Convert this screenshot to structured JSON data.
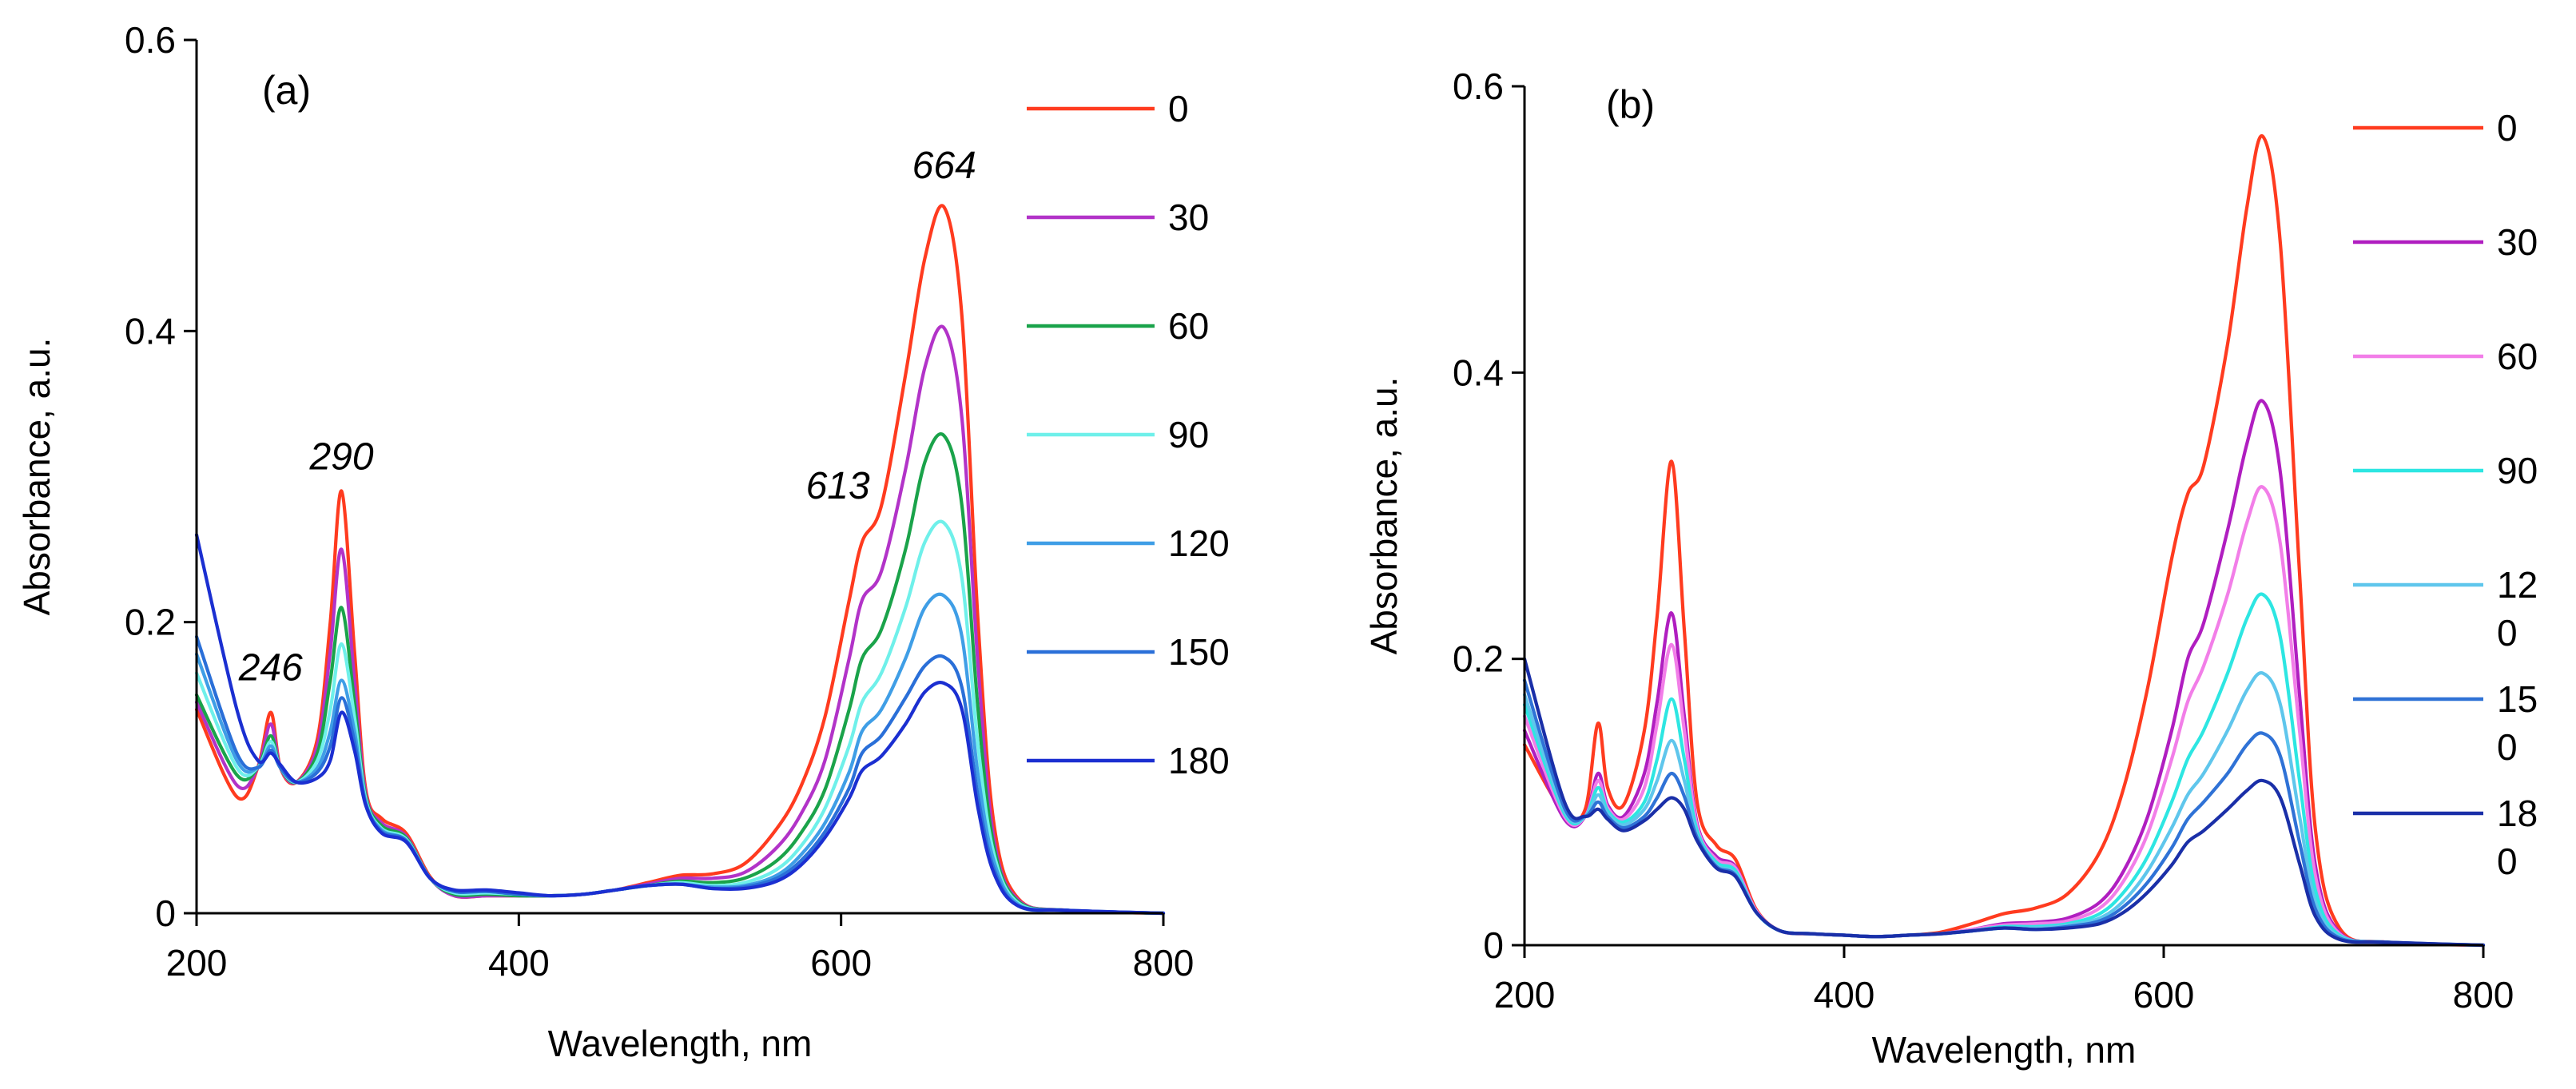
{
  "chart_data": [
    {
      "type": "line",
      "panel_label": "(a)",
      "title": "",
      "xlabel": "Wavelength, nm",
      "ylabel": "Absorbance, a.u.",
      "xlim": [
        200,
        800
      ],
      "ylim": [
        0,
        0.6
      ],
      "x_ticks": [
        200,
        400,
        600,
        800
      ],
      "x_tick_labels": [
        "200",
        "400",
        "600",
        "800"
      ],
      "y_ticks": [
        0,
        0.2,
        0.4,
        0.6
      ],
      "y_tick_labels": [
        "0",
        "0.2",
        "0.4",
        "0.6"
      ],
      "grid": false,
      "legend_position": "right",
      "annotations": [
        {
          "text": "246",
          "x": 246,
          "y": 0.16
        },
        {
          "text": "290",
          "x": 290,
          "y": 0.305
        },
        {
          "text": "613",
          "x": 598,
          "y": 0.285
        },
        {
          "text": "664",
          "x": 664,
          "y": 0.505
        }
      ],
      "x": [
        200,
        225,
        238,
        246,
        252,
        262,
        275,
        283,
        290,
        298,
        305,
        315,
        330,
        345,
        360,
        380,
        400,
        420,
        440,
        460,
        480,
        500,
        520,
        540,
        560,
        575,
        590,
        605,
        613,
        625,
        640,
        652,
        664,
        675,
        685,
        695,
        710,
        740,
        800
      ],
      "series": [
        {
          "name": "0",
          "color": "#ff3b1f",
          "values": [
            0.14,
            0.08,
            0.1,
            0.138,
            0.1,
            0.09,
            0.12,
            0.2,
            0.29,
            0.18,
            0.085,
            0.065,
            0.055,
            0.025,
            0.012,
            0.012,
            0.012,
            0.012,
            0.013,
            0.016,
            0.021,
            0.026,
            0.027,
            0.034,
            0.058,
            0.087,
            0.135,
            0.215,
            0.255,
            0.28,
            0.37,
            0.45,
            0.485,
            0.41,
            0.2,
            0.06,
            0.01,
            0.002,
            0.0
          ]
        },
        {
          "name": "30",
          "color": "#b233c8",
          "values": [
            0.145,
            0.088,
            0.1,
            0.13,
            0.1,
            0.09,
            0.115,
            0.18,
            0.25,
            0.16,
            0.082,
            0.062,
            0.053,
            0.024,
            0.012,
            0.012,
            0.012,
            0.012,
            0.013,
            0.016,
            0.02,
            0.024,
            0.024,
            0.028,
            0.045,
            0.068,
            0.105,
            0.175,
            0.215,
            0.235,
            0.305,
            0.375,
            0.402,
            0.34,
            0.17,
            0.05,
            0.009,
            0.002,
            0.0
          ]
        },
        {
          "name": "60",
          "color": "#1aa34a",
          "values": [
            0.15,
            0.095,
            0.1,
            0.122,
            0.1,
            0.09,
            0.11,
            0.16,
            0.21,
            0.145,
            0.08,
            0.06,
            0.052,
            0.024,
            0.013,
            0.013,
            0.012,
            0.012,
            0.013,
            0.016,
            0.019,
            0.022,
            0.021,
            0.024,
            0.036,
            0.055,
            0.085,
            0.14,
            0.175,
            0.195,
            0.25,
            0.31,
            0.328,
            0.28,
            0.14,
            0.045,
            0.008,
            0.002,
            0.0
          ]
        },
        {
          "name": "90",
          "color": "#6ff0ea",
          "values": [
            0.165,
            0.1,
            0.1,
            0.118,
            0.1,
            0.09,
            0.105,
            0.14,
            0.185,
            0.135,
            0.078,
            0.058,
            0.051,
            0.024,
            0.014,
            0.014,
            0.013,
            0.012,
            0.013,
            0.016,
            0.019,
            0.021,
            0.019,
            0.021,
            0.03,
            0.046,
            0.072,
            0.115,
            0.145,
            0.165,
            0.21,
            0.255,
            0.268,
            0.23,
            0.115,
            0.04,
            0.007,
            0.002,
            0.0
          ]
        },
        {
          "name": "120",
          "color": "#3f9ee6",
          "values": [
            0.178,
            0.105,
            0.1,
            0.115,
            0.1,
            0.09,
            0.1,
            0.125,
            0.16,
            0.125,
            0.076,
            0.057,
            0.05,
            0.024,
            0.015,
            0.015,
            0.013,
            0.012,
            0.013,
            0.016,
            0.019,
            0.02,
            0.018,
            0.019,
            0.026,
            0.04,
            0.062,
            0.097,
            0.125,
            0.14,
            0.175,
            0.21,
            0.218,
            0.19,
            0.095,
            0.035,
            0.006,
            0.002,
            0.0
          ]
        },
        {
          "name": "150",
          "color": "#2a6fd8",
          "values": [
            0.19,
            0.11,
            0.1,
            0.112,
            0.1,
            0.09,
            0.097,
            0.115,
            0.148,
            0.118,
            0.075,
            0.056,
            0.05,
            0.024,
            0.015,
            0.015,
            0.013,
            0.012,
            0.013,
            0.016,
            0.019,
            0.02,
            0.017,
            0.018,
            0.024,
            0.036,
            0.056,
            0.086,
            0.11,
            0.122,
            0.148,
            0.17,
            0.176,
            0.155,
            0.08,
            0.03,
            0.005,
            0.002,
            0.0
          ]
        },
        {
          "name": "180",
          "color": "#1b2fd1",
          "values": [
            0.26,
            0.14,
            0.105,
            0.11,
            0.102,
            0.09,
            0.093,
            0.105,
            0.138,
            0.112,
            0.074,
            0.055,
            0.049,
            0.024,
            0.016,
            0.016,
            0.014,
            0.012,
            0.013,
            0.016,
            0.019,
            0.02,
            0.017,
            0.017,
            0.022,
            0.033,
            0.052,
            0.079,
            0.098,
            0.108,
            0.13,
            0.152,
            0.158,
            0.14,
            0.072,
            0.027,
            0.005,
            0.002,
            0.0
          ]
        }
      ]
    },
    {
      "type": "line",
      "panel_label": "(b)",
      "title": "",
      "xlabel": "Wavelength, nm",
      "ylabel": "Absorbance, a.u.",
      "xlim": [
        200,
        800
      ],
      "ylim": [
        0,
        0.6
      ],
      "x_ticks": [
        200,
        400,
        600,
        800
      ],
      "x_tick_labels": [
        "200",
        "400",
        "600",
        "800"
      ],
      "y_ticks": [
        0,
        0.2,
        0.4,
        0.6
      ],
      "y_tick_labels": [
        "0",
        "0.2",
        "0.4",
        "0.6"
      ],
      "grid": false,
      "legend_position": "right",
      "x": [
        200,
        225,
        238,
        246,
        252,
        262,
        275,
        283,
        292,
        300,
        308,
        320,
        332,
        345,
        360,
        380,
        400,
        420,
        440,
        460,
        480,
        500,
        520,
        540,
        560,
        575,
        590,
        605,
        615,
        625,
        640,
        652,
        662,
        673,
        685,
        695,
        710,
        740,
        800
      ],
      "series": [
        {
          "name": "0",
          "color": "#ff3b1f",
          "values": [
            0.14,
            0.092,
            0.095,
            0.155,
            0.11,
            0.098,
            0.15,
            0.23,
            0.338,
            0.22,
            0.1,
            0.07,
            0.06,
            0.025,
            0.01,
            0.008,
            0.007,
            0.006,
            0.007,
            0.009,
            0.015,
            0.022,
            0.026,
            0.036,
            0.065,
            0.11,
            0.18,
            0.27,
            0.315,
            0.335,
            0.42,
            0.515,
            0.565,
            0.49,
            0.26,
            0.08,
            0.012,
            0.002,
            0.0
          ]
        },
        {
          "name": "30",
          "color": "#b01ec0",
          "values": [
            0.15,
            0.088,
            0.09,
            0.12,
            0.098,
            0.09,
            0.12,
            0.17,
            0.232,
            0.16,
            0.085,
            0.062,
            0.055,
            0.024,
            0.01,
            0.008,
            0.007,
            0.006,
            0.007,
            0.008,
            0.011,
            0.015,
            0.016,
            0.019,
            0.03,
            0.052,
            0.09,
            0.15,
            0.2,
            0.225,
            0.29,
            0.35,
            0.38,
            0.33,
            0.175,
            0.055,
            0.009,
            0.002,
            0.0
          ]
        },
        {
          "name": "60",
          "color": "#f27ee8",
          "values": [
            0.16,
            0.09,
            0.09,
            0.115,
            0.096,
            0.088,
            0.11,
            0.155,
            0.21,
            0.15,
            0.083,
            0.06,
            0.054,
            0.024,
            0.01,
            0.008,
            0.007,
            0.006,
            0.007,
            0.008,
            0.011,
            0.014,
            0.015,
            0.017,
            0.026,
            0.045,
            0.078,
            0.13,
            0.17,
            0.195,
            0.245,
            0.295,
            0.32,
            0.28,
            0.15,
            0.048,
            0.008,
            0.002,
            0.0
          ]
        },
        {
          "name": "90",
          "color": "#2de6e2",
          "values": [
            0.168,
            0.092,
            0.09,
            0.11,
            0.094,
            0.086,
            0.1,
            0.13,
            0.172,
            0.13,
            0.08,
            0.058,
            0.052,
            0.023,
            0.01,
            0.008,
            0.007,
            0.006,
            0.007,
            0.008,
            0.01,
            0.013,
            0.013,
            0.015,
            0.022,
            0.037,
            0.062,
            0.1,
            0.13,
            0.15,
            0.19,
            0.228,
            0.245,
            0.215,
            0.115,
            0.038,
            0.007,
            0.002,
            0.0
          ]
        },
        {
          "name": "120",
          "color": "#5fc6ec",
          "values": [
            0.175,
            0.094,
            0.09,
            0.105,
            0.092,
            0.084,
            0.095,
            0.115,
            0.143,
            0.115,
            0.077,
            0.056,
            0.05,
            0.023,
            0.01,
            0.008,
            0.007,
            0.006,
            0.007,
            0.008,
            0.01,
            0.012,
            0.012,
            0.014,
            0.019,
            0.031,
            0.052,
            0.082,
            0.105,
            0.12,
            0.15,
            0.178,
            0.19,
            0.168,
            0.09,
            0.03,
            0.006,
            0.002,
            0.0
          ]
        },
        {
          "name": "150",
          "color": "#2f72d6",
          "values": [
            0.185,
            0.096,
            0.09,
            0.1,
            0.09,
            0.082,
            0.09,
            0.103,
            0.12,
            0.104,
            0.075,
            0.055,
            0.049,
            0.023,
            0.01,
            0.008,
            0.007,
            0.006,
            0.007,
            0.008,
            0.01,
            0.012,
            0.011,
            0.013,
            0.017,
            0.027,
            0.044,
            0.068,
            0.088,
            0.1,
            0.12,
            0.14,
            0.148,
            0.132,
            0.072,
            0.025,
            0.005,
            0.002,
            0.0
          ]
        },
        {
          "name": "180",
          "color": "#1a2fa8",
          "values": [
            0.2,
            0.1,
            0.09,
            0.095,
            0.088,
            0.08,
            0.087,
            0.095,
            0.103,
            0.095,
            0.073,
            0.054,
            0.048,
            0.023,
            0.01,
            0.008,
            0.007,
            0.006,
            0.007,
            0.008,
            0.01,
            0.012,
            0.011,
            0.012,
            0.015,
            0.023,
            0.037,
            0.056,
            0.072,
            0.08,
            0.095,
            0.108,
            0.115,
            0.103,
            0.057,
            0.02,
            0.004,
            0.002,
            0.0
          ]
        }
      ],
      "legend_label_lines": [
        [
          "0"
        ],
        [
          "30"
        ],
        [
          "60"
        ],
        [
          "90"
        ],
        [
          "12",
          "0"
        ],
        [
          "15",
          "0"
        ],
        [
          "18",
          "0"
        ]
      ]
    }
  ]
}
